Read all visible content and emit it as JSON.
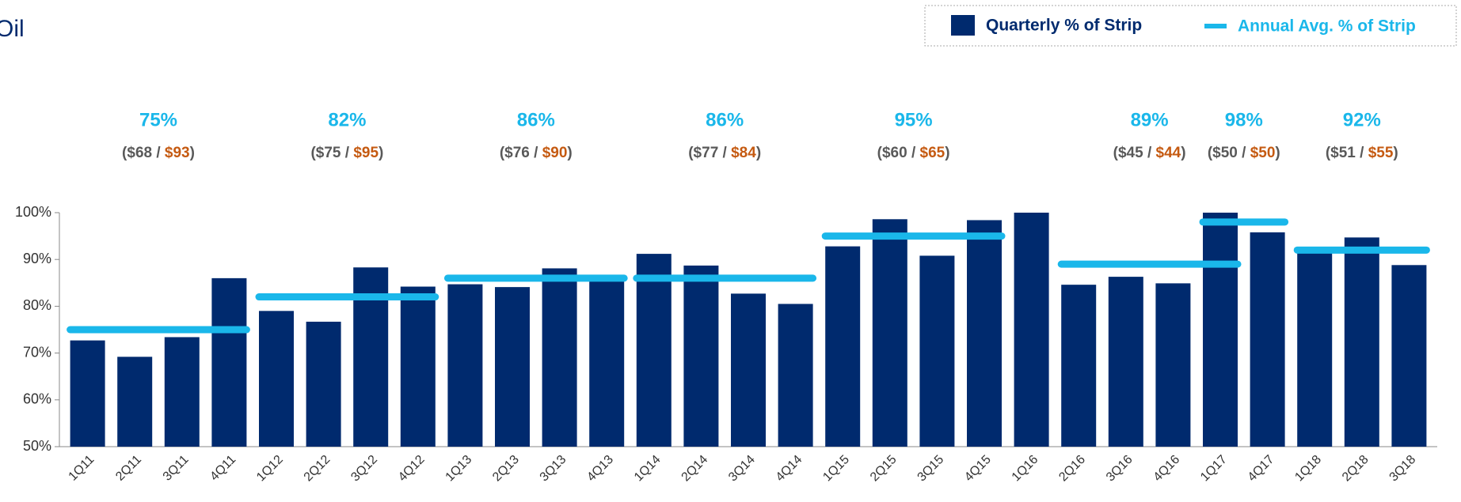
{
  "chart_data": {
    "type": "bar",
    "title": "Oil",
    "categories": [
      "1Q11",
      "2Q11",
      "3Q11",
      "4Q11",
      "1Q12",
      "2Q12",
      "3Q12",
      "4Q12",
      "1Q13",
      "2Q13",
      "3Q13",
      "4Q13",
      "1Q14",
      "2Q14",
      "3Q14",
      "4Q14",
      "1Q15",
      "2Q15",
      "3Q15",
      "4Q15",
      "1Q16",
      "2Q16",
      "3Q16",
      "4Q16",
      "1Q17",
      "4Q17",
      "1Q18",
      "2Q18",
      "3Q18"
    ],
    "series": [
      {
        "name": "Quarterly % of Strip",
        "color": "#002a6e",
        "values": [
          72.7,
          69.2,
          73.4,
          86,
          79,
          76.7,
          88.3,
          84.2,
          84.7,
          84.1,
          88.1,
          85.9,
          91.2,
          88.7,
          82.7,
          80.5,
          92.8,
          98.6,
          90.8,
          98.4,
          100,
          84.6,
          86.3,
          84.9,
          100,
          95.8,
          92.5,
          94.7,
          88.8
        ]
      },
      {
        "name": "Annual Avg. % of Strip",
        "color": "#1ab7ea",
        "annual": [
          {
            "from": "1Q11",
            "to": "4Q11",
            "value": 75,
            "value_label": "75%",
            "price_label": [
              "($68 / ",
              "$93",
              ")"
            ]
          },
          {
            "from": "1Q12",
            "to": "4Q12",
            "value": 82,
            "value_label": "82%",
            "price_label": [
              "($75 / ",
              "$95",
              ")"
            ]
          },
          {
            "from": "1Q13",
            "to": "4Q13",
            "value": 86,
            "value_label": "86%",
            "price_label": [
              "($76 / ",
              "$90",
              ")"
            ]
          },
          {
            "from": "1Q14",
            "to": "4Q14",
            "value": 86,
            "value_label": "86%",
            "price_label": [
              "($77 / ",
              "$84",
              ")"
            ]
          },
          {
            "from": "1Q15",
            "to": "4Q15",
            "value": 95,
            "value_label": "95%",
            "price_label": [
              "($60 / ",
              "$65",
              ")"
            ]
          },
          {
            "from": "2Q16",
            "to": "1Q17",
            "value": 89,
            "value_label": "89%",
            "price_label": [
              "($45 / ",
              "$44",
              ")"
            ]
          },
          {
            "from": "1Q17",
            "to": "4Q17",
            "value": 98,
            "value_label": "98%",
            "price_label": [
              "($50 / ",
              "$50",
              ")"
            ]
          },
          {
            "from": "1Q18",
            "to": "3Q18",
            "value": 92,
            "value_label": "92%",
            "price_label": [
              "($51 / ",
              "$55",
              ")"
            ]
          }
        ]
      }
    ],
    "price_colors": [
      "#595959",
      "#c55a11"
    ],
    "ylim": [
      50,
      100
    ],
    "yticks": [
      {
        "value": 50,
        "label": "50%"
      },
      {
        "value": 60,
        "label": "60%"
      },
      {
        "value": 70,
        "label": "70%"
      },
      {
        "value": 80,
        "label": "80%"
      },
      {
        "value": 90,
        "label": "90%"
      },
      {
        "value": 100,
        "label": "100%"
      }
    ],
    "legend": "top-right"
  }
}
